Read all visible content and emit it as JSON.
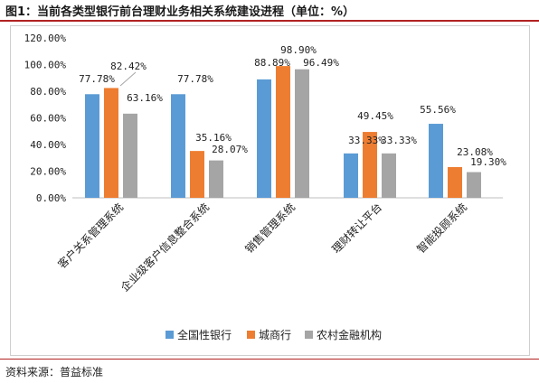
{
  "title": "图1：当前各类型银行前台理财业务相关系统建设进程（单位：%）",
  "source": "资料来源：普益标准",
  "colors": {
    "series": [
      "#5b9bd5",
      "#ed7d31",
      "#a5a5a5"
    ],
    "title_rule": "#b22222"
  },
  "chart_data": {
    "type": "bar",
    "categories": [
      "客户关系管理系统",
      "企业级客户信息整合系统",
      "销售管理系统",
      "理财转让平台",
      "智能投顾系统"
    ],
    "series": [
      {
        "name": "全国性银行",
        "values": [
          77.78,
          77.78,
          88.89,
          33.33,
          55.56
        ],
        "labels": [
          "77.78%",
          "77.78%",
          "88.89%",
          "33.33%",
          "55.56%"
        ]
      },
      {
        "name": "城商行",
        "values": [
          82.42,
          35.16,
          98.9,
          49.45,
          23.08
        ],
        "labels": [
          "82.42%",
          "35.16%",
          "98.90%",
          "49.45%",
          "23.08%"
        ]
      },
      {
        "name": "农村金融机构",
        "values": [
          63.16,
          28.07,
          96.49,
          33.33,
          19.3
        ],
        "labels": [
          "63.16%",
          "28.07%",
          "96.49%",
          "33.33%",
          "19.30%"
        ]
      }
    ],
    "y_ticks": [
      "0.00%",
      "20.00%",
      "40.00%",
      "60.00%",
      "80.00%",
      "100.00%",
      "120.00%"
    ],
    "ylim": [
      0,
      120
    ],
    "grid": false,
    "legend_position": "bottom"
  }
}
